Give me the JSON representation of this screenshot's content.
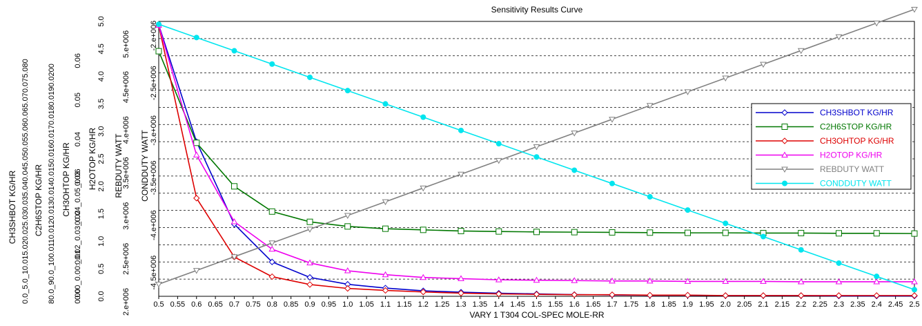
{
  "chart_data": {
    "type": "line",
    "title": "Sensitivity Results Curve",
    "xlabel": "VARY   1 T304 COL-SPEC MOLE-RR",
    "x": [
      0.5,
      0.6,
      0.7,
      0.8,
      0.9,
      1.0,
      1.1,
      1.2,
      1.3,
      1.4,
      1.5,
      1.6,
      1.7,
      1.8,
      1.9,
      2.0,
      2.1,
      2.2,
      2.3,
      2.4,
      2.5
    ],
    "xlim": [
      0.5,
      2.5
    ],
    "x_tick_labels": [
      "0.5",
      "0.55",
      "0.6",
      "0.65",
      "0.7",
      "0.75",
      "0.8",
      "0.85",
      "0.9",
      "0.95",
      "1.0",
      "1.05",
      "1.1",
      "1.15",
      "1.2",
      "1.25",
      "1.3",
      "1.35",
      "1.4",
      "1.45",
      "1.5",
      "1.55",
      "1.6",
      "1.65",
      "1.7",
      "1.75",
      "1.8",
      "1.85",
      "1.9",
      "1.95",
      "2.0",
      "2.05",
      "2.1",
      "2.15",
      "2.2",
      "2.25",
      "2.3",
      "2.35",
      "2.4",
      "2.45",
      "2.5"
    ],
    "grid": "horizontal-dashed",
    "legend_position": "right",
    "axes": [
      {
        "key": "ch3sh",
        "label": "CH3SHBOT KG/HR",
        "ylim": [
          0.0,
          0.08
        ],
        "ticks": [
          "0.0",
          "0.005",
          "0.010",
          "0.015",
          "0.020",
          "0.025",
          "0.030",
          "0.035",
          "0.040",
          "0.045",
          "0.050",
          "0.055",
          "0.060",
          "0.065",
          "0.070",
          "0.075",
          "0.080"
        ],
        "tick_text": "0.0_5.0_10.015.020.025.030.035.040.045.050.055.060.065.070.075.080",
        "color": "#000000"
      },
      {
        "key": "c2h6",
        "label": "C2H6STOP KG/HR",
        "ylim": [
          0.08,
          0.2
        ],
        "ticks": [
          "0.080",
          "0.090",
          "0.100",
          "0.110",
          "0.120",
          "0.130",
          "0.140",
          "0.150",
          "0.160",
          "0.170",
          "0.180",
          "0.190",
          "0.200"
        ],
        "tick_text": "80.0_90.0_100.0110.0120.0130.0140.0150.0160.0170.0180.0190.0200",
        "color": "#000000"
      },
      {
        "key": "ch3oh",
        "label": "CH3OHTOP KG/HR",
        "ylim": [
          0.0,
          0.07
        ],
        "ticks": [
          "0.00",
          "0.01",
          "0.02",
          "0.03",
          "0.04",
          "0.05",
          "0.06"
        ],
        "tick_text": "0.00_0.00:_0.02_0.03_0.04_0.05_0.06",
        "color": "#000000"
      },
      {
        "key": "h2o",
        "label": "H2OTOP KG/HR",
        "ylim": [
          0.0,
          0.07
        ],
        "ticks": [
          "0.00",
          "0.01",
          "0.02",
          "0.03",
          "0.04",
          "0.05",
          "0.06"
        ],
        "tick_text": "",
        "color": "#000000"
      },
      {
        "key": "reb",
        "label": "REBDUTY WATT",
        "ylim": [
          0.0,
          5.0
        ],
        "ticks": [
          "0.0",
          "0.5",
          "1.0",
          "1.5",
          "2.0",
          "2.5",
          "3.0",
          "3.5",
          "4.0",
          "4.5",
          "5.0"
        ],
        "tick_text": "",
        "color": "#000000"
      },
      {
        "key": "reb_w",
        "label": "",
        "ylim": [
          2000000,
          5200000
        ],
        "ticks": [
          "2.e+006",
          "2.5e+006",
          "3.e+006",
          "3.5e+006",
          "4.e+006",
          "4.5e+006",
          "5.e+006"
        ],
        "tick_text": "",
        "color": "#000000"
      },
      {
        "key": "cond",
        "label": "CONDDUTY WATT",
        "ylim": [
          -4750000.0,
          -1850000.0
        ],
        "ticks": [
          "-2.e+006",
          "-2.5e+006",
          "-3.e+006",
          "-3.5e+006",
          "-4.e+006",
          "-4.5e+006"
        ],
        "tick_text": "",
        "color": "#000000"
      }
    ],
    "series": [
      {
        "name": "CH3SHBOT KG/HR",
        "axis": "ch3sh",
        "color": "#0000cc",
        "marker": "diamond",
        "y": [
          0.079,
          0.045,
          0.021,
          0.01,
          0.0055,
          0.0035,
          0.0024,
          0.0016,
          0.0012,
          0.0009,
          0.0007,
          0.0005,
          0.0004,
          0.0003,
          0.0003,
          0.0002,
          0.0002,
          0.0002,
          0.0001,
          0.0001,
          0.0001
        ]
      },
      {
        "name": "C2H6STOP KG/HR",
        "axis": "c2h6",
        "color": "#007700",
        "marker": "square",
        "y": [
          0.187,
          0.147,
          0.128,
          0.117,
          0.1125,
          0.1105,
          0.1095,
          0.109,
          0.1085,
          0.1083,
          0.1081,
          0.108,
          0.1079,
          0.1078,
          0.1077,
          0.1077,
          0.1076,
          0.1076,
          0.1075,
          0.1075,
          0.1074
        ]
      },
      {
        "name": "CH3OHTOP KG/HR",
        "axis": "ch3oh",
        "color": "#dd0000",
        "marker": "diamond",
        "y": [
          0.069,
          0.025,
          0.01,
          0.005,
          0.003,
          0.002,
          0.0015,
          0.0011,
          0.0008,
          0.0006,
          0.0005,
          0.0004,
          0.0004,
          0.0003,
          0.0003,
          0.0002,
          0.0002,
          0.0002,
          0.0002,
          0.0002,
          0.0002
        ]
      },
      {
        "name": "H2OTOP KG/HR",
        "axis": "h2o",
        "color": "#ee00ee",
        "marker": "triangle",
        "y": [
          0.069,
          0.036,
          0.019,
          0.012,
          0.0085,
          0.0065,
          0.0055,
          0.0048,
          0.0045,
          0.0042,
          0.0041,
          0.004,
          0.0039,
          0.0039,
          0.0038,
          0.0038,
          0.0038,
          0.0037,
          0.0037,
          0.0037,
          0.0037
        ]
      },
      {
        "name": "REBDUTY WATT",
        "axis": "reb",
        "color": "#808080",
        "marker": "triangle-down",
        "y": [
          0.22,
          0.47,
          0.72,
          0.97,
          1.22,
          1.47,
          1.72,
          1.97,
          2.22,
          2.47,
          2.72,
          2.97,
          3.22,
          3.47,
          3.72,
          3.97,
          4.22,
          4.47,
          4.72,
          4.97,
          5.22
        ]
      },
      {
        "name": "CONDDUTY WATT",
        "axis": "cond",
        "color": "#00e5ee",
        "marker": "dot",
        "y": [
          -1880000.0,
          -2020000.0,
          -2160000.0,
          -2300000.0,
          -2440000.0,
          -2580000.0,
          -2720000.0,
          -2860000.0,
          -3000000.0,
          -3140000.0,
          -3280000.0,
          -3420000.0,
          -3560000.0,
          -3700000.0,
          -3840000.0,
          -3980000.0,
          -4120000.0,
          -4260000.0,
          -4400000.0,
          -4540000.0,
          -4680000.0
        ]
      }
    ]
  }
}
